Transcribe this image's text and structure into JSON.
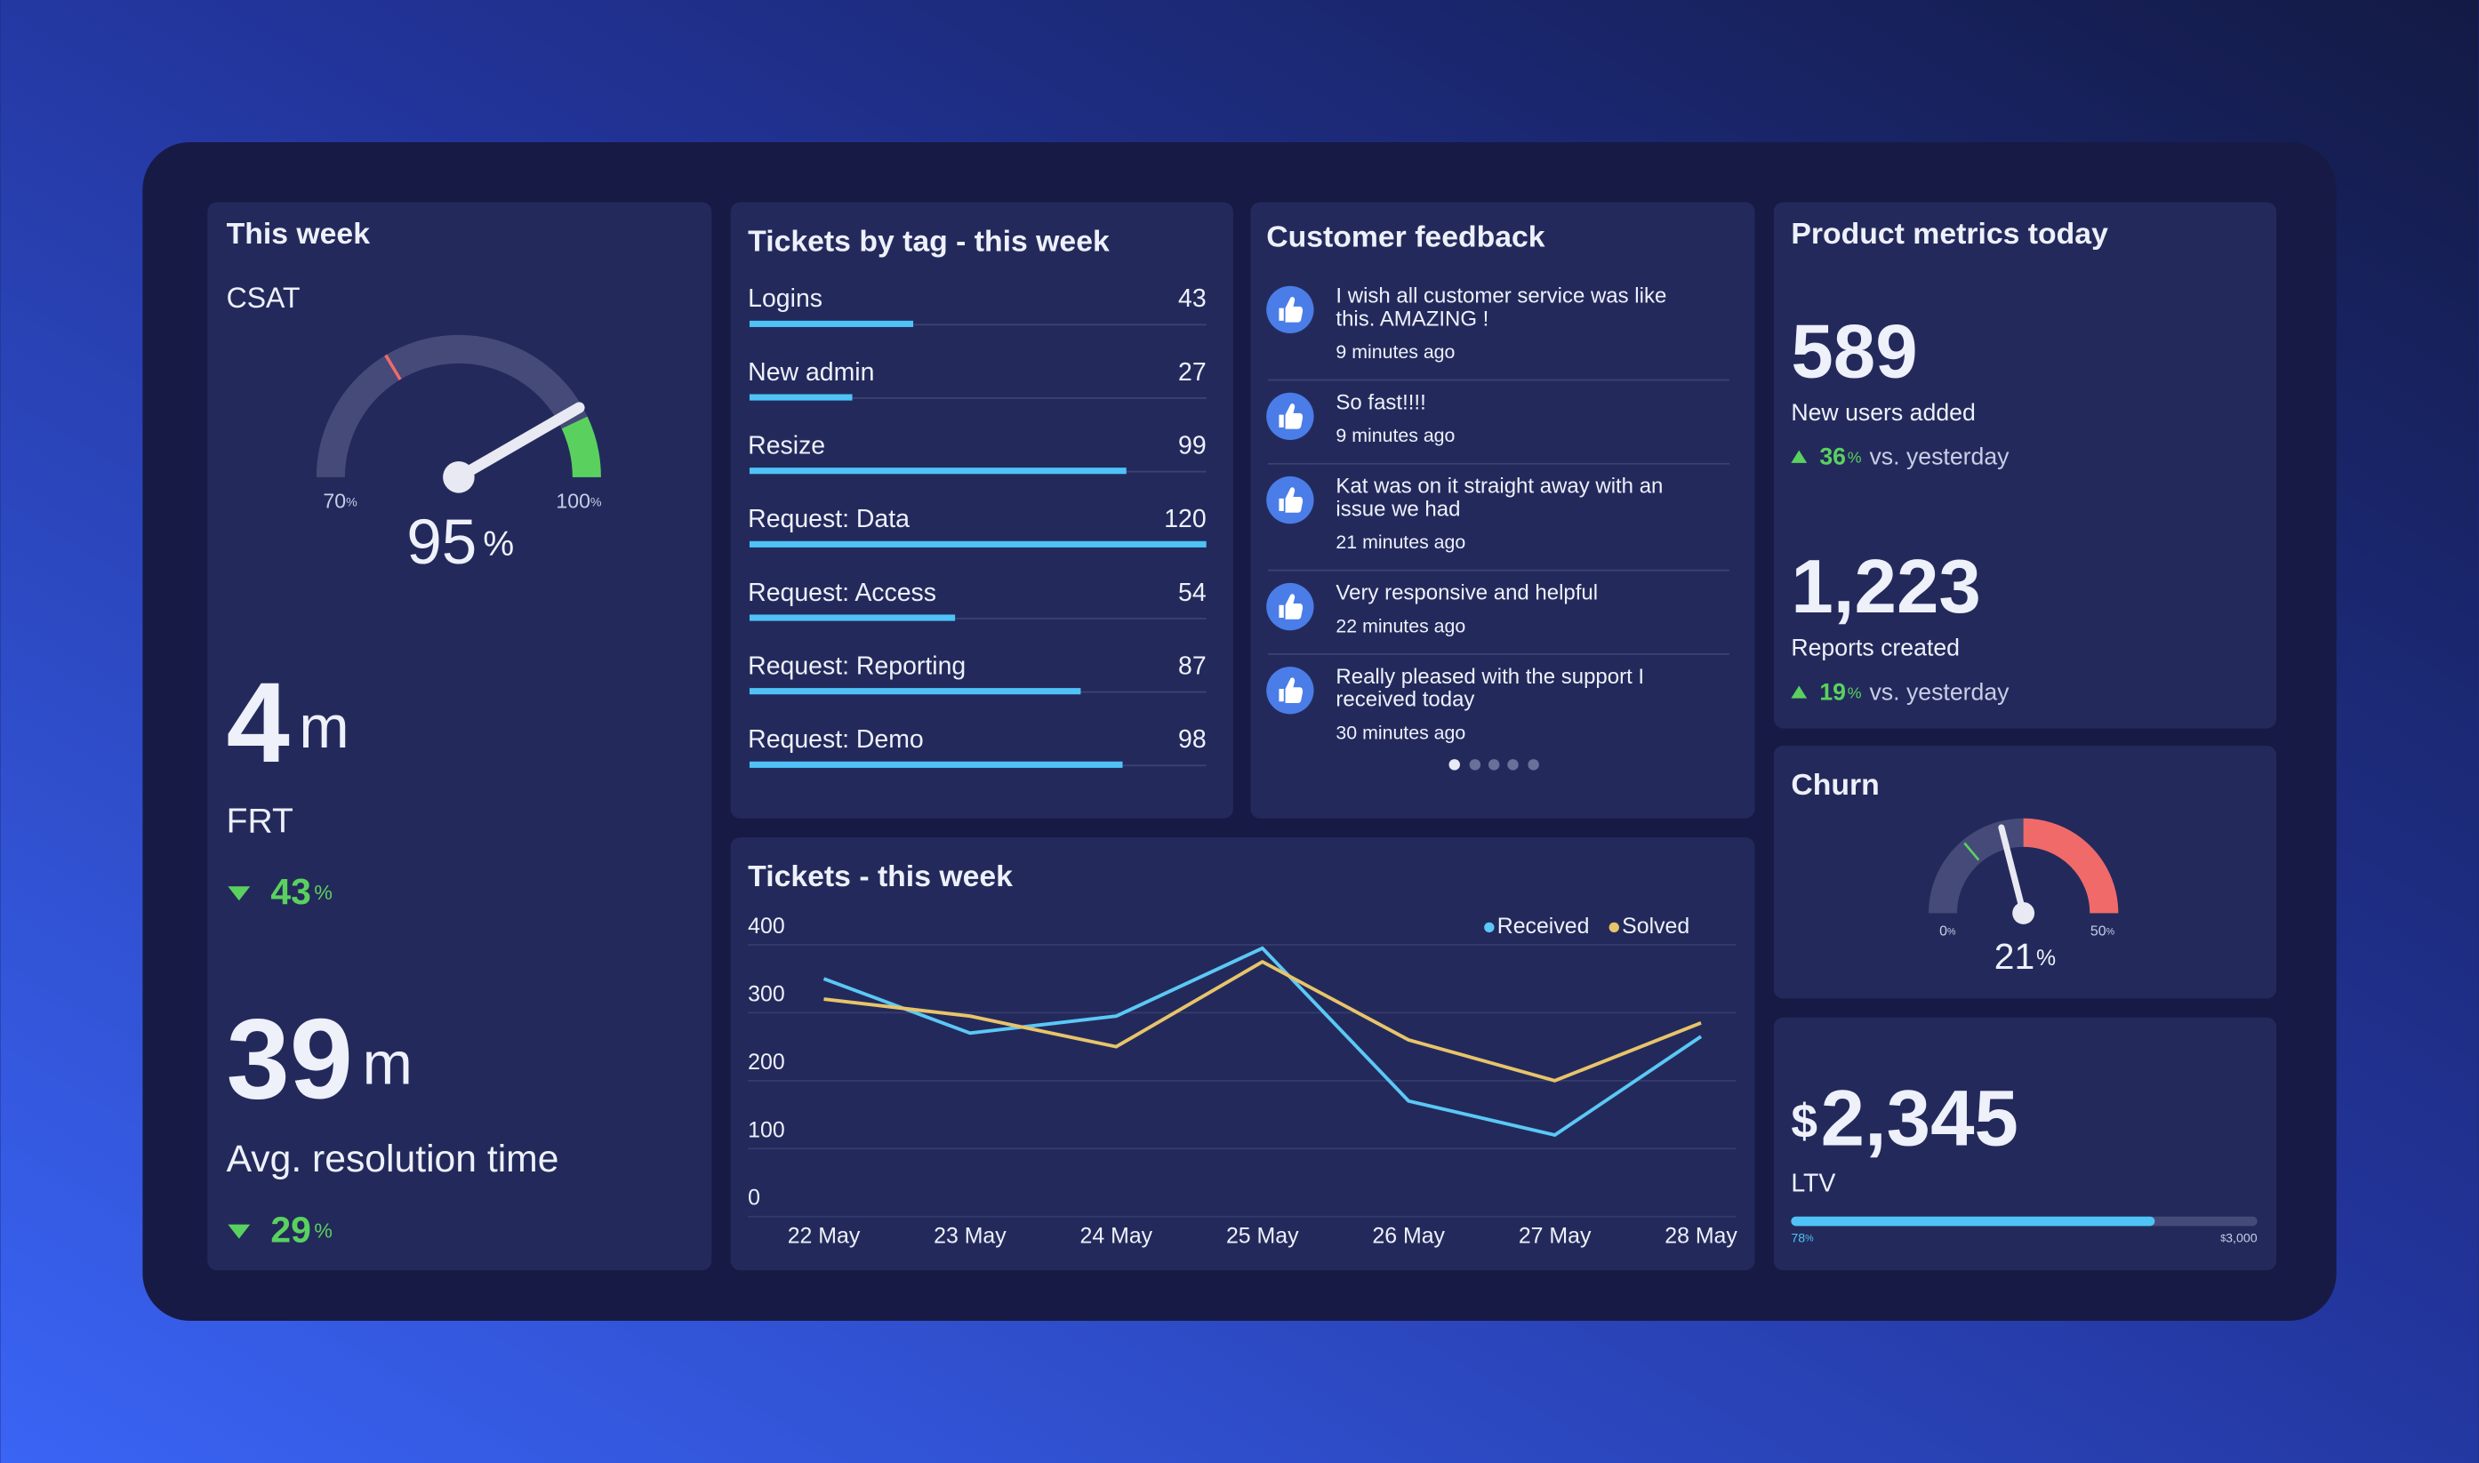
{
  "this_week": {
    "title": "This week",
    "csat": {
      "label": "CSAT",
      "value": 95,
      "unit": "%",
      "min": 70,
      "max": 100
    },
    "frt": {
      "value": "4",
      "unit": "m",
      "label": "FRT",
      "change": "43",
      "change_unit": "%",
      "direction": "down"
    },
    "resolution": {
      "value": "39",
      "unit": "m",
      "label": "Avg. resolution time",
      "change": "29",
      "change_unit": "%",
      "direction": "down"
    }
  },
  "tickets_by_tag": {
    "title": "Tickets by tag - this week",
    "xlim": [
      0,
      120
    ],
    "color": "#4fc3f7",
    "rows": [
      {
        "label": "Logins",
        "value": 43
      },
      {
        "label": "New admin",
        "value": 27
      },
      {
        "label": "Resize",
        "value": 99
      },
      {
        "label": "Request: Data",
        "value": 120
      },
      {
        "label": "Request: Access",
        "value": 54
      },
      {
        "label": "Request: Reporting",
        "value": 87
      },
      {
        "label": "Request: Demo",
        "value": 98
      }
    ]
  },
  "customer_feedback": {
    "title": "Customer feedback",
    "items": [
      {
        "lines": [
          "I wish all customer service was like",
          "this. AMAZING !"
        ],
        "time": "9 minutes ago"
      },
      {
        "lines": [
          "So fast!!!!"
        ],
        "time": "9 minutes ago"
      },
      {
        "lines": [
          "Kat was on it straight away with an",
          "issue we had"
        ],
        "time": "21 minutes ago"
      },
      {
        "lines": [
          "Very responsive and helpful"
        ],
        "time": "22 minutes ago"
      },
      {
        "lines": [
          "Really pleased with the support I",
          "received today"
        ],
        "time": "30 minutes ago"
      }
    ]
  },
  "tickets_this_week": {
    "type": "line",
    "title": "Tickets - this week",
    "categories": [
      "22 May",
      "23 May",
      "24 May",
      "25 May",
      "26 May",
      "27 May",
      "28 May"
    ],
    "series": [
      {
        "name": "Received",
        "color": "#5bc8f5",
        "values": [
          350,
          270,
          295,
          395,
          170,
          120,
          265
        ]
      },
      {
        "name": "Solved",
        "color": "#e8c46a",
        "values": [
          320,
          295,
          250,
          375,
          260,
          200,
          285
        ]
      }
    ],
    "ylim": [
      0,
      400
    ],
    "yticks": [
      0,
      100,
      200,
      300,
      400
    ],
    "grid": true,
    "legend": "top-right"
  },
  "product_metrics": {
    "title": "Product metrics today",
    "metrics": [
      {
        "value": "589",
        "label": "New users added",
        "change": "36",
        "change_unit": "%",
        "comparison": "vs. yesterday",
        "direction": "up"
      },
      {
        "value": "1,223",
        "label": "Reports created",
        "change": "19",
        "change_unit": "%",
        "comparison": "vs. yesterday",
        "direction": "up"
      }
    ]
  },
  "churn": {
    "title": "Churn",
    "value": 21,
    "unit": "%",
    "min": 0,
    "max": 50
  },
  "ltv": {
    "currency": "$",
    "value": "2,345",
    "label": "LTV",
    "progress": 78,
    "progress_unit": "%",
    "target_currency": "$",
    "target": "3,000"
  }
}
